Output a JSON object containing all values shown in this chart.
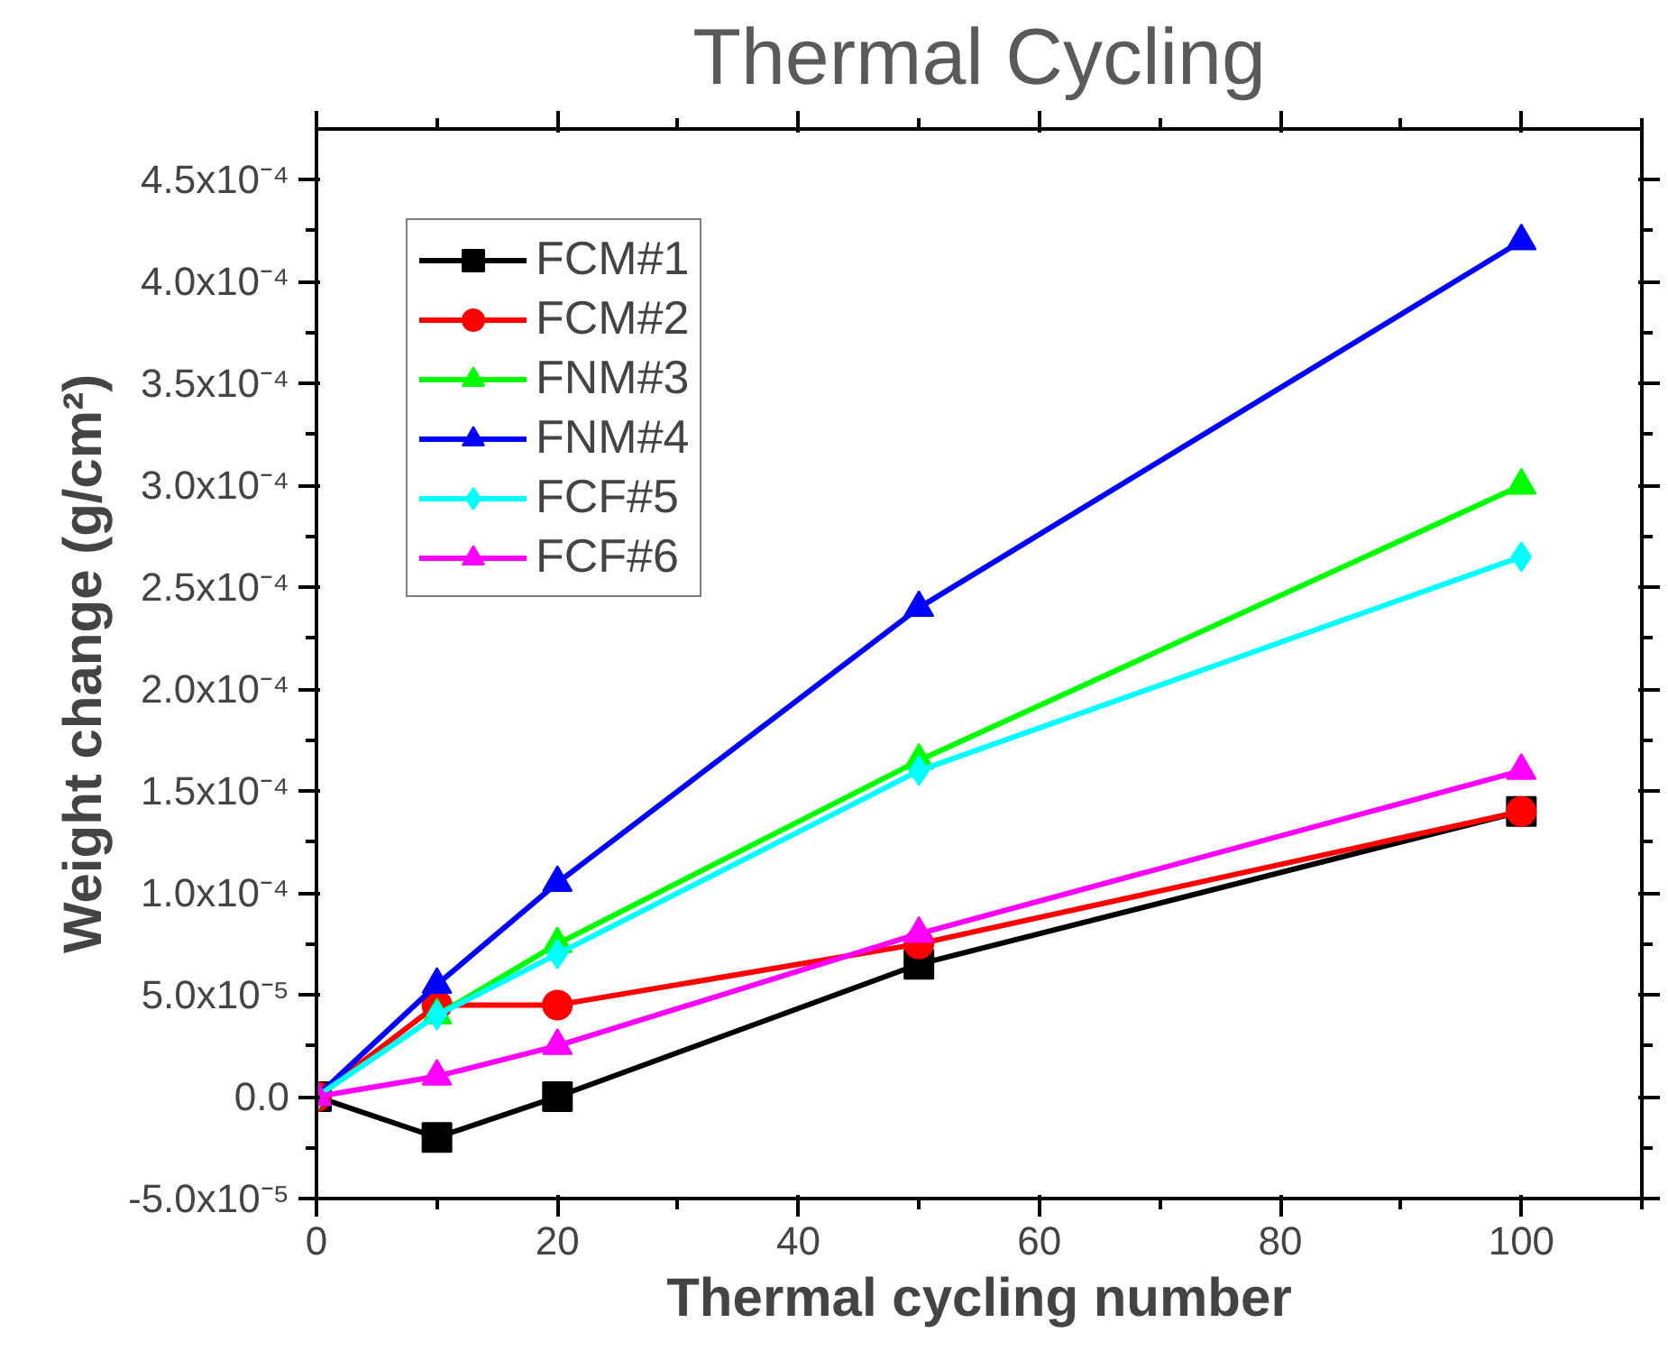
{
  "chart_data": {
    "type": "line",
    "title": "Thermal Cycling",
    "xlabel": "Thermal cycling number",
    "ylabel": "Weight change (g/cm²)",
    "x": [
      0,
      10,
      20,
      50,
      100
    ],
    "series": [
      {
        "name": "FCM#1",
        "color": "#000000",
        "marker": "square",
        "values": [
          0,
          -2e-05,
          0,
          6.5e-05,
          0.00014
        ]
      },
      {
        "name": "FCM#2",
        "color": "#ff0000",
        "marker": "circle",
        "values": [
          0,
          4.5e-05,
          4.5e-05,
          7.5e-05,
          0.00014
        ]
      },
      {
        "name": "FNM#3",
        "color": "#00ff00",
        "marker": "triangle",
        "values": [
          0,
          4e-05,
          7.5e-05,
          0.000165,
          0.0003
        ]
      },
      {
        "name": "FNM#4",
        "color": "#0000ff",
        "marker": "triangle",
        "values": [
          0,
          5.5e-05,
          0.000105,
          0.00024,
          0.00042
        ]
      },
      {
        "name": "FCF#5",
        "color": "#00ffff",
        "marker": "diamond",
        "values": [
          0,
          4e-05,
          7e-05,
          0.00016,
          0.000265
        ]
      },
      {
        "name": "FCF#6",
        "color": "#ff00ff",
        "marker": "triangle",
        "values": [
          0,
          1e-05,
          2.5e-05,
          8e-05,
          0.00016
        ]
      }
    ],
    "xlim": [
      0,
      110
    ],
    "xticks": [
      0,
      20,
      40,
      60,
      80,
      100
    ],
    "ylim": [
      -5e-05,
      0.000475
    ],
    "yticks": [
      {
        "value": -5e-05,
        "label": "-5.0x10⁻⁵"
      },
      {
        "value": 0,
        "label": "0.0"
      },
      {
        "value": 5e-05,
        "label": "5.0x10⁻⁵"
      },
      {
        "value": 0.0001,
        "label": "1.0x10⁻⁴"
      },
      {
        "value": 0.00015,
        "label": "1.5x10⁻⁴"
      },
      {
        "value": 0.0002,
        "label": "2.0x10⁻⁴"
      },
      {
        "value": 0.00025,
        "label": "2.5x10⁻⁴"
      },
      {
        "value": 0.0003,
        "label": "3.0x10⁻⁴"
      },
      {
        "value": 0.00035,
        "label": "3.5x10⁻⁴"
      },
      {
        "value": 0.0004,
        "label": "4.0x10⁻⁴"
      },
      {
        "value": 0.00045,
        "label": "4.5x10⁻⁴"
      }
    ],
    "grid": false,
    "legend": "top left",
    "line_style": "solid"
  }
}
